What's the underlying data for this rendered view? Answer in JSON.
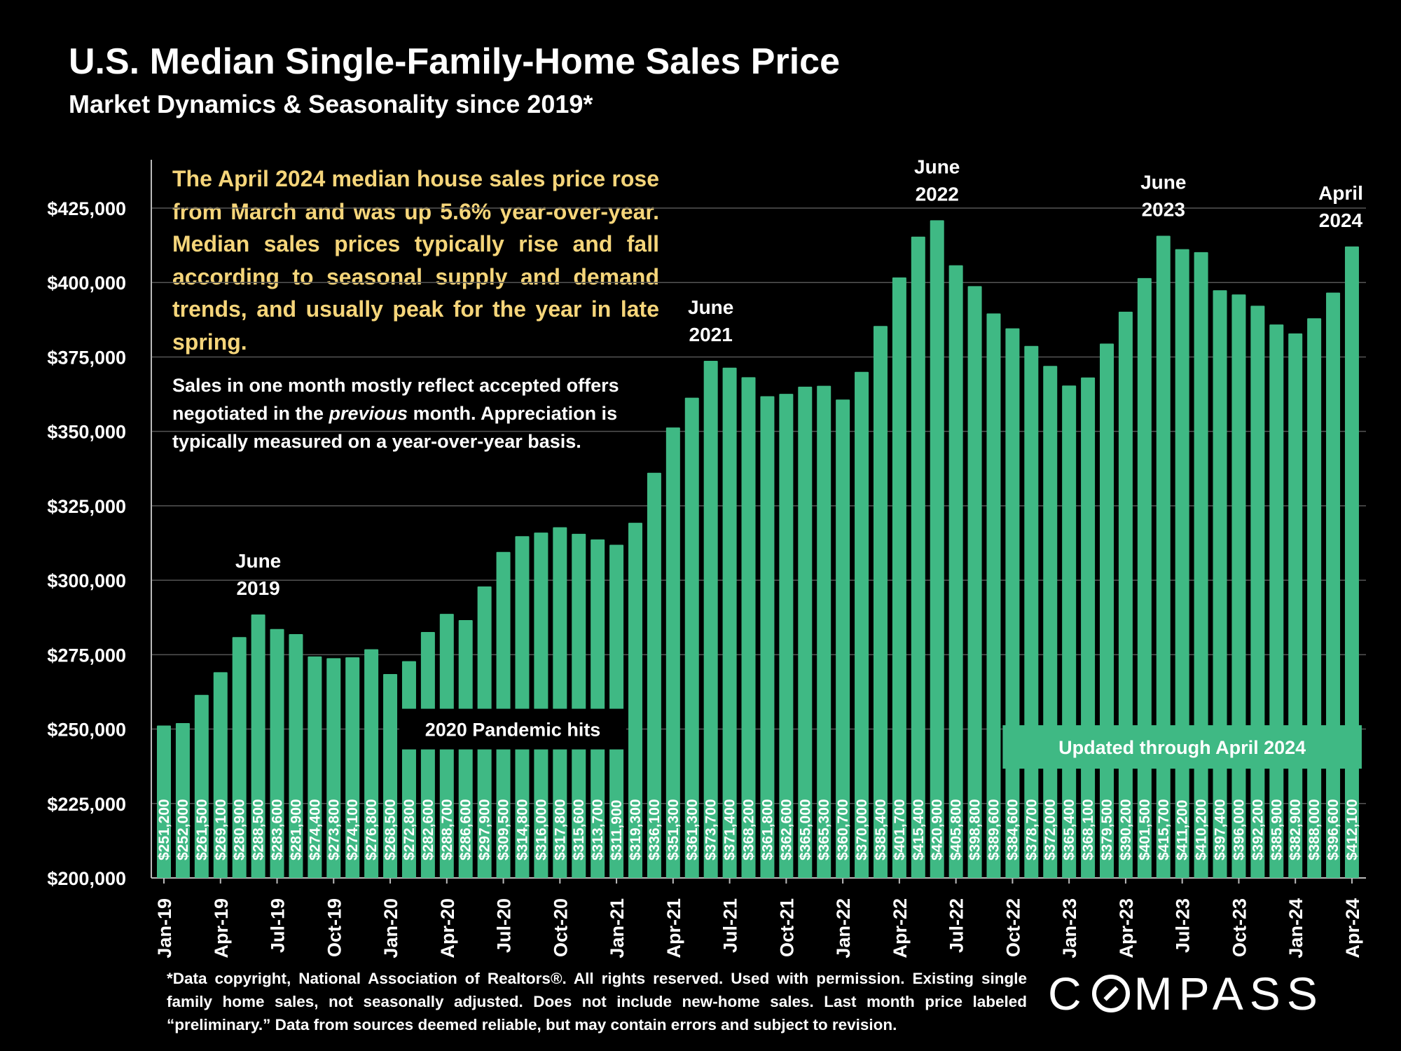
{
  "title": "U.S. Median Single-Family-Home Sales Price",
  "subtitle": "Market Dynamics & Seasonality since 2019*",
  "commentary": "The April 2024 median house sales price rose from March and was up 5.6% year-over-year. Median sales prices typically rise and fall according to seasonal supply and demand trends, and usually peak for the year in late spring.",
  "note": {
    "before": "Sales in one month mostly reflect accepted offers negotiated in the ",
    "emphasis": "previous",
    "after": " month. Appreciation is typically measured on a year-over-year basis."
  },
  "footnote": "*Data copyright, National Association of Realtors®. All rights reserved. Used with permission. Existing single family home sales, not seasonally adjusted. Does not include new-home sales. Last month price labeled “preliminary.” Data from sources deemed reliable, but may contain errors and subject to revision.",
  "logo": {
    "before": "C",
    "after": "MPASS",
    "icon": "compass-o-icon"
  },
  "colors": {
    "bar": "#3fb984",
    "background": "#000000",
    "commentary": "#f5d57a",
    "grid": "#555555"
  },
  "chart_data": {
    "type": "bar",
    "title": "U.S. Median Single-Family-Home Sales Price",
    "ylim": [
      200000,
      440000
    ],
    "yticks": [
      200000,
      225000,
      250000,
      275000,
      300000,
      325000,
      350000,
      375000,
      400000,
      425000
    ],
    "ytick_labels": [
      "$200,000",
      "$225,000",
      "$250,000",
      "$275,000",
      "$300,000",
      "$325,000",
      "$350,000",
      "$375,000",
      "$400,000",
      "$425,000"
    ],
    "grid": true,
    "categories": [
      "Jan-19",
      "Feb-19",
      "Mar-19",
      "Apr-19",
      "May-19",
      "Jun-19",
      "Jul-19",
      "Aug-19",
      "Sep-19",
      "Oct-19",
      "Nov-19",
      "Dec-19",
      "Jan-20",
      "Feb-20",
      "Mar-20",
      "Apr-20",
      "May-20",
      "Jun-20",
      "Jul-20",
      "Aug-20",
      "Sep-20",
      "Oct-20",
      "Nov-20",
      "Dec-20",
      "Jan-21",
      "Feb-21",
      "Mar-21",
      "Apr-21",
      "May-21",
      "Jun-21",
      "Jul-21",
      "Aug-21",
      "Sep-21",
      "Oct-21",
      "Nov-21",
      "Dec-21",
      "Jan-22",
      "Feb-22",
      "Mar-22",
      "Apr-22",
      "May-22",
      "Jun-22",
      "Jul-22",
      "Aug-22",
      "Sep-22",
      "Oct-22",
      "Nov-22",
      "Dec-22",
      "Jan-23",
      "Feb-23",
      "Mar-23",
      "Apr-23",
      "May-23",
      "Jun-23",
      "Jul-23",
      "Aug-23",
      "Sep-23",
      "Oct-23",
      "Nov-23",
      "Dec-23",
      "Jan-24",
      "Feb-24",
      "Mar-24",
      "Apr-24"
    ],
    "visible_xtick_labels": [
      "Jan-19",
      "Apr-19",
      "Jul-19",
      "Oct-19",
      "Jan-20",
      "Apr-20",
      "Jul-20",
      "Oct-20",
      "Jan-21",
      "Apr-21",
      "Jul-21",
      "Oct-21",
      "Jan-22",
      "Apr-22",
      "Jul-22",
      "Oct-22",
      "Jan-23",
      "Apr-23",
      "Jul-23",
      "Oct-23",
      "Jan-24",
      "Apr-24"
    ],
    "values": [
      251200,
      252000,
      261500,
      269100,
      280900,
      288500,
      283600,
      281900,
      274400,
      273800,
      274100,
      276800,
      268500,
      272800,
      282600,
      288700,
      286600,
      297900,
      309500,
      314800,
      316000,
      317800,
      315600,
      313700,
      311900,
      319300,
      336100,
      351300,
      361300,
      373700,
      371400,
      368200,
      361800,
      362600,
      365000,
      365300,
      360700,
      370000,
      385400,
      401700,
      415400,
      420900,
      405800,
      398800,
      389600,
      384600,
      378700,
      372000,
      365400,
      368100,
      379500,
      390200,
      401500,
      415700,
      411200,
      410200,
      397400,
      396000,
      392200,
      385900,
      382900,
      388000,
      396600,
      412100
    ],
    "data_labels": [
      "$251,200",
      "$252,000",
      "$261,500",
      "$269,100",
      "$280,900",
      "$288,500",
      "$283,600",
      "$281,900",
      "$274,400",
      "$273,800",
      "$274,100",
      "$276,800",
      "$268,500",
      "$272,800",
      "$282,600",
      "$288,700",
      "$286,600",
      "$297,900",
      "$309,500",
      "$314,800",
      "$316,000",
      "$317,800",
      "$315,600",
      "$313,700",
      "$311,900",
      "$319,300",
      "$336,100",
      "$351,300",
      "$361,300",
      "$373,700",
      "$371,400",
      "$368,200",
      "$361,800",
      "$362,600",
      "$365,000",
      "$365,300",
      "$360,700",
      "$370,000",
      "$385,400",
      "$401,700",
      "$415,400",
      "$420,900",
      "$405,800",
      "$398,800",
      "$389,600",
      "$384,600",
      "$378,700",
      "$372,000",
      "$365,400",
      "$368,100",
      "$379,500",
      "$390,200",
      "$401,500",
      "$415,700",
      "$411,200",
      "$410,200",
      "$397,400",
      "$396,000",
      "$392,200",
      "$385,900",
      "$382,900",
      "$388,000",
      "$396,600",
      "$412,100"
    ],
    "annotations": [
      {
        "lines": [
          "June",
          "2019"
        ],
        "index": 5
      },
      {
        "lines": [
          "June",
          "2021"
        ],
        "index": 29
      },
      {
        "lines": [
          "June",
          "2022"
        ],
        "index": 41
      },
      {
        "lines": [
          "June",
          "2023"
        ],
        "index": 53
      },
      {
        "lines": [
          "April",
          "2024"
        ],
        "index": 63
      }
    ],
    "callouts": [
      {
        "text": "2020 Pandemic hits",
        "from_index": 13,
        "to_index": 24,
        "value": 250000
      },
      {
        "text": "Updated through April 2024",
        "from_index": 45,
        "to_index": 63,
        "value": 244000
      }
    ]
  }
}
